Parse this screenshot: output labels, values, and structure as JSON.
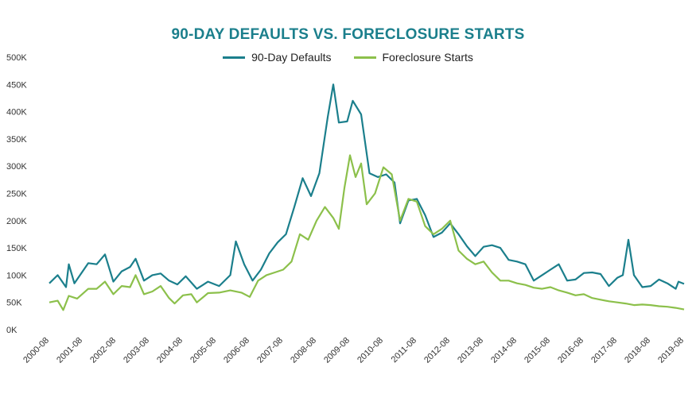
{
  "chart_data": {
    "type": "line",
    "title": "90-DAY DEFAULTS VS. FORECLOSURE STARTS",
    "xlabel": "",
    "ylabel": "",
    "ylim": [
      0,
      500000
    ],
    "yticks": [
      0,
      50000,
      100000,
      150000,
      200000,
      250000,
      300000,
      350000,
      400000,
      450000,
      500000
    ],
    "ytick_labels": [
      "0K",
      "50K",
      "100K",
      "150K",
      "200K",
      "250K",
      "300K",
      "350K",
      "400K",
      "450K",
      "500K"
    ],
    "xtick_labels": [
      "2000-08",
      "2001-08",
      "2002-08",
      "2003-08",
      "2004-08",
      "2005-08",
      "2006-08",
      "2007-08",
      "2008-08",
      "2009-08",
      "2010-08",
      "2011-08",
      "2012-08",
      "2013-08",
      "2014-08",
      "2015-08",
      "2016-08",
      "2017-08",
      "2018-08",
      "2019-08"
    ],
    "legend_position": "top-center",
    "grid": false,
    "x_start": "2000-08",
    "x_end": "2019-08",
    "series": [
      {
        "name": "90-Day Defaults",
        "color": "#1b7f8c",
        "points": [
          [
            "2000-08",
            85000
          ],
          [
            "2000-11",
            100000
          ],
          [
            "2001-02",
            78000
          ],
          [
            "2001-03",
            120000
          ],
          [
            "2001-05",
            85000
          ],
          [
            "2001-10",
            122000
          ],
          [
            "2002-01",
            120000
          ],
          [
            "2002-04",
            138000
          ],
          [
            "2002-07",
            88000
          ],
          [
            "2002-10",
            107000
          ],
          [
            "2003-01",
            115000
          ],
          [
            "2003-03",
            130000
          ],
          [
            "2003-06",
            90000
          ],
          [
            "2003-09",
            100000
          ],
          [
            "2003-12",
            103000
          ],
          [
            "2004-03",
            90000
          ],
          [
            "2004-06",
            83000
          ],
          [
            "2004-09",
            98000
          ],
          [
            "2005-01",
            75000
          ],
          [
            "2005-05",
            88000
          ],
          [
            "2005-09",
            80000
          ],
          [
            "2006-01",
            100000
          ],
          [
            "2006-03",
            162000
          ],
          [
            "2006-06",
            120000
          ],
          [
            "2006-09",
            90000
          ],
          [
            "2006-12",
            110000
          ],
          [
            "2007-03",
            140000
          ],
          [
            "2007-06",
            160000
          ],
          [
            "2007-09",
            175000
          ],
          [
            "2007-12",
            225000
          ],
          [
            "2008-03",
            278000
          ],
          [
            "2008-06",
            245000
          ],
          [
            "2008-09",
            287000
          ],
          [
            "2008-12",
            390000
          ],
          [
            "2009-02",
            450000
          ],
          [
            "2009-04",
            380000
          ],
          [
            "2009-07",
            382000
          ],
          [
            "2009-09",
            420000
          ],
          [
            "2009-12",
            395000
          ],
          [
            "2010-03",
            287000
          ],
          [
            "2010-06",
            280000
          ],
          [
            "2010-09",
            285000
          ],
          [
            "2010-12",
            270000
          ],
          [
            "2011-02",
            195000
          ],
          [
            "2011-05",
            237000
          ],
          [
            "2011-08",
            240000
          ],
          [
            "2011-11",
            210000
          ],
          [
            "2012-02",
            170000
          ],
          [
            "2012-05",
            178000
          ],
          [
            "2012-08",
            195000
          ],
          [
            "2012-11",
            175000
          ],
          [
            "2013-02",
            153000
          ],
          [
            "2013-05",
            135000
          ],
          [
            "2013-08",
            152000
          ],
          [
            "2013-11",
            155000
          ],
          [
            "2014-02",
            150000
          ],
          [
            "2014-05",
            128000
          ],
          [
            "2014-08",
            125000
          ],
          [
            "2014-11",
            120000
          ],
          [
            "2015-02",
            90000
          ],
          [
            "2015-05",
            100000
          ],
          [
            "2015-08",
            110000
          ],
          [
            "2015-11",
            120000
          ],
          [
            "2016-02",
            90000
          ],
          [
            "2016-05",
            92000
          ],
          [
            "2016-08",
            104000
          ],
          [
            "2016-11",
            105000
          ],
          [
            "2017-02",
            102000
          ],
          [
            "2017-05",
            80000
          ],
          [
            "2017-08",
            95000
          ],
          [
            "2017-10",
            100000
          ],
          [
            "2017-12",
            165000
          ],
          [
            "2018-02",
            100000
          ],
          [
            "2018-05",
            78000
          ],
          [
            "2018-08",
            80000
          ],
          [
            "2018-11",
            92000
          ],
          [
            "2019-02",
            85000
          ],
          [
            "2019-05",
            75000
          ],
          [
            "2019-06",
            88000
          ],
          [
            "2019-08",
            84000
          ]
        ]
      },
      {
        "name": "Foreclosure Starts",
        "color": "#8cc04b",
        "points": [
          [
            "2000-08",
            50000
          ],
          [
            "2000-11",
            53000
          ],
          [
            "2001-01",
            36000
          ],
          [
            "2001-03",
            62000
          ],
          [
            "2001-06",
            57000
          ],
          [
            "2001-10",
            75000
          ],
          [
            "2002-01",
            75000
          ],
          [
            "2002-04",
            88000
          ],
          [
            "2002-07",
            65000
          ],
          [
            "2002-10",
            80000
          ],
          [
            "2003-01",
            78000
          ],
          [
            "2003-03",
            100000
          ],
          [
            "2003-06",
            65000
          ],
          [
            "2003-09",
            70000
          ],
          [
            "2003-12",
            80000
          ],
          [
            "2004-03",
            58000
          ],
          [
            "2004-05",
            48000
          ],
          [
            "2004-08",
            63000
          ],
          [
            "2004-11",
            65000
          ],
          [
            "2005-01",
            50000
          ],
          [
            "2005-05",
            67000
          ],
          [
            "2005-09",
            68000
          ],
          [
            "2006-01",
            72000
          ],
          [
            "2006-05",
            68000
          ],
          [
            "2006-08",
            60000
          ],
          [
            "2006-11",
            90000
          ],
          [
            "2007-02",
            100000
          ],
          [
            "2007-05",
            105000
          ],
          [
            "2007-08",
            110000
          ],
          [
            "2007-11",
            125000
          ],
          [
            "2008-02",
            175000
          ],
          [
            "2008-05",
            165000
          ],
          [
            "2008-08",
            200000
          ],
          [
            "2008-11",
            225000
          ],
          [
            "2009-02",
            205000
          ],
          [
            "2009-04",
            185000
          ],
          [
            "2009-06",
            260000
          ],
          [
            "2009-08",
            320000
          ],
          [
            "2009-10",
            280000
          ],
          [
            "2009-12",
            305000
          ],
          [
            "2010-02",
            230000
          ],
          [
            "2010-05",
            250000
          ],
          [
            "2010-08",
            298000
          ],
          [
            "2010-11",
            285000
          ],
          [
            "2011-02",
            200000
          ],
          [
            "2011-05",
            240000
          ],
          [
            "2011-08",
            235000
          ],
          [
            "2011-11",
            190000
          ],
          [
            "2012-02",
            175000
          ],
          [
            "2012-05",
            185000
          ],
          [
            "2012-08",
            200000
          ],
          [
            "2012-11",
            145000
          ],
          [
            "2013-02",
            130000
          ],
          [
            "2013-05",
            120000
          ],
          [
            "2013-08",
            125000
          ],
          [
            "2013-11",
            105000
          ],
          [
            "2014-02",
            90000
          ],
          [
            "2014-05",
            90000
          ],
          [
            "2014-08",
            85000
          ],
          [
            "2014-11",
            82000
          ],
          [
            "2015-02",
            77000
          ],
          [
            "2015-05",
            75000
          ],
          [
            "2015-08",
            78000
          ],
          [
            "2015-11",
            72000
          ],
          [
            "2016-02",
            68000
          ],
          [
            "2016-05",
            63000
          ],
          [
            "2016-08",
            65000
          ],
          [
            "2016-11",
            58000
          ],
          [
            "2017-02",
            55000
          ],
          [
            "2017-05",
            52000
          ],
          [
            "2017-08",
            50000
          ],
          [
            "2017-11",
            48000
          ],
          [
            "2018-02",
            45000
          ],
          [
            "2018-05",
            46000
          ],
          [
            "2018-08",
            45000
          ],
          [
            "2018-11",
            43000
          ],
          [
            "2019-02",
            42000
          ],
          [
            "2019-05",
            40000
          ],
          [
            "2019-08",
            37000
          ]
        ]
      }
    ]
  }
}
